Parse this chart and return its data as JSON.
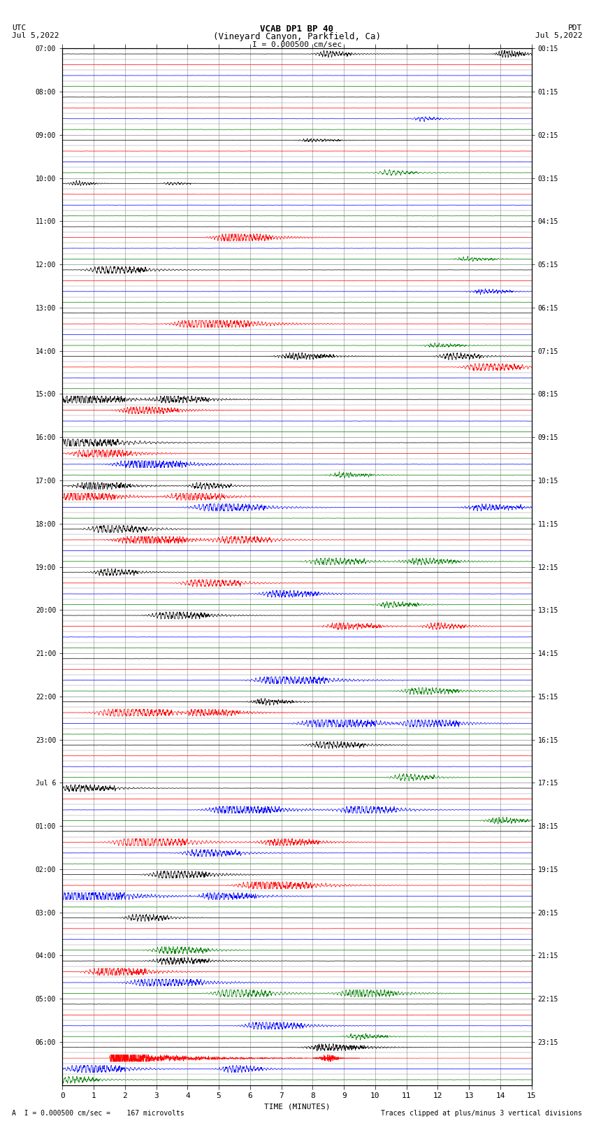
{
  "title_line1": "VCAB DP1 BP 40",
  "title_line2": "(Vineyard Canyon, Parkfield, Ca)",
  "scale_text": "I = 0.000500 cm/sec",
  "utc_label": "UTC",
  "utc_date": "Jul 5,2022",
  "pdt_label": "PDT",
  "pdt_date": "Jul 5,2022",
  "xlabel": "TIME (MINUTES)",
  "footer_left": "A  I = 0.000500 cm/sec =    167 microvolts",
  "footer_right": "Traces clipped at plus/minus 3 vertical divisions",
  "left_times": [
    "07:00",
    "08:00",
    "09:00",
    "10:00",
    "11:00",
    "12:00",
    "13:00",
    "14:00",
    "15:00",
    "16:00",
    "17:00",
    "18:00",
    "19:00",
    "20:00",
    "21:00",
    "22:00",
    "23:00",
    "Jul 6",
    "01:00",
    "02:00",
    "03:00",
    "04:00",
    "05:00",
    "06:00"
  ],
  "right_times": [
    "00:15",
    "01:15",
    "02:15",
    "03:15",
    "04:15",
    "05:15",
    "06:15",
    "07:15",
    "08:15",
    "09:15",
    "10:15",
    "11:15",
    "12:15",
    "13:15",
    "14:15",
    "15:15",
    "16:15",
    "17:15",
    "18:15",
    "19:15",
    "20:15",
    "21:15",
    "22:15",
    "23:15"
  ],
  "num_rows": 24,
  "traces_per_row": 4,
  "colors": [
    "black",
    "red",
    "blue",
    "green"
  ],
  "bg_color": "#ffffff",
  "plot_bg": "#ffffff",
  "xmin": 0,
  "xmax": 15,
  "xticks": [
    0,
    1,
    2,
    3,
    4,
    5,
    6,
    7,
    8,
    9,
    10,
    11,
    12,
    13,
    14,
    15
  ],
  "grid_color": "#888888",
  "noise_level": 0.04,
  "amplitude_scale": 0.32,
  "clip_val": 0.32
}
